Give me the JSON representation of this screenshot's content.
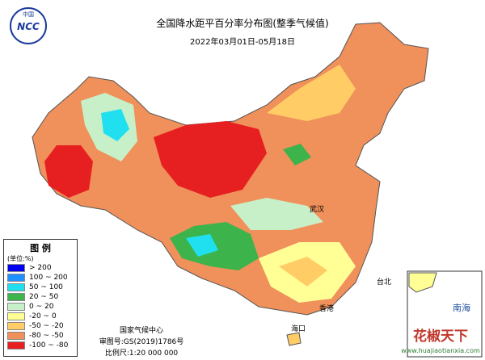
{
  "header": {
    "title": "全国降水距平百分率分布图(整季气候值)",
    "subtitle": "2022年03月01日-05月18日"
  },
  "logo": {
    "top": "中国",
    "mark": "NCC"
  },
  "legend": {
    "title": "图 例",
    "unit": "(单位:%)",
    "items": [
      {
        "label": "> 200",
        "color": "#0000f0"
      },
      {
        "label": "100 ~ 200",
        "color": "#1e90ff"
      },
      {
        "label": "50 ~ 100",
        "color": "#20e0f0"
      },
      {
        "label": "20 ~ 50",
        "color": "#3cb44b"
      },
      {
        "label": "0 ~ 20",
        "color": "#c8f0c8"
      },
      {
        "label": "-20 ~ 0",
        "color": "#ffff96"
      },
      {
        "label": "-50 ~ -20",
        "color": "#ffcc66"
      },
      {
        "label": "-80 ~ -50",
        "color": "#f0905a"
      },
      {
        "label": "-100 ~ -80",
        "color": "#e62020"
      }
    ]
  },
  "footer": {
    "org": "国家气候中心",
    "review": "审图号:GS(2019)1786号",
    "scale": "比例尺:1:20 000 000"
  },
  "cities": [
    "武汉",
    "台北",
    "香港",
    "海口"
  ],
  "inset": {
    "label": "南海"
  },
  "watermark": {
    "name": "花椒天下",
    "url": "www.huajiaotianxia.com"
  }
}
